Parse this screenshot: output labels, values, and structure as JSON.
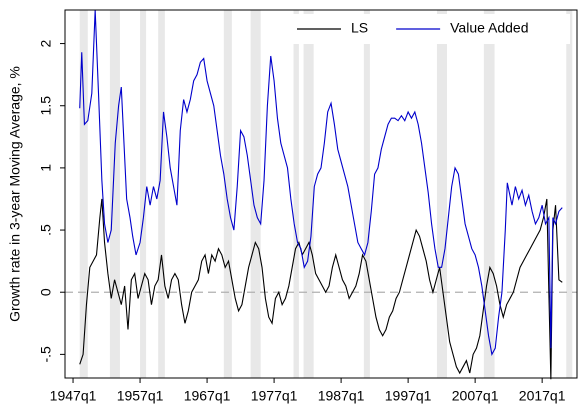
{
  "chart_data": {
    "type": "line",
    "y_label": "Growth rate in 3-year Moving Average, %",
    "xlim": [
      1945.8,
      2022.2
    ],
    "ylim": [
      -0.69,
      2.27
    ],
    "xticks": [
      {
        "value": 1947,
        "label": "1947q1"
      },
      {
        "value": 1957,
        "label": "1957q1"
      },
      {
        "value": 1967,
        "label": "1967q1"
      },
      {
        "value": 1977,
        "label": "1977q1"
      },
      {
        "value": 1987,
        "label": "1987q1"
      },
      {
        "value": 1997,
        "label": "1997q1"
      },
      {
        "value": 2007,
        "label": "2007q1"
      },
      {
        "value": 2017,
        "label": "2017q1"
      }
    ],
    "yticks": [
      {
        "value": -0.5,
        "label": "-.5"
      },
      0,
      {
        "value": 0.5,
        "label": ".5"
      },
      1,
      1.5,
      2
    ],
    "reference_line": 0,
    "legend": "top-right",
    "recessions": [
      [
        1948.0,
        1949.2
      ],
      [
        1952.5,
        1954.0
      ],
      [
        1957.0,
        1957.9
      ],
      [
        1959.7,
        1960.7
      ],
      [
        1969.5,
        1970.7
      ],
      [
        1973.5,
        1975.0
      ],
      [
        1979.9,
        1980.7
      ],
      [
        1981.4,
        1982.9
      ],
      [
        1990.4,
        1991.3
      ],
      [
        2001.3,
        2002.8
      ],
      [
        2008.3,
        2009.9
      ],
      [
        2020.6,
        2021.5
      ]
    ],
    "series": [
      {
        "name": "LS",
        "color": "#000000",
        "x": [
          1948.0,
          1948.5,
          1949.0,
          1949.5,
          1950.0,
          1950.5,
          1951.0,
          1951.3,
          1951.7,
          1952.2,
          1952.7,
          1953.2,
          1953.7,
          1954.2,
          1954.7,
          1955.2,
          1955.7,
          1956.2,
          1956.7,
          1957.2,
          1957.7,
          1958.2,
          1958.7,
          1959.2,
          1959.7,
          1960.2,
          1960.7,
          1961.2,
          1961.7,
          1962.2,
          1962.7,
          1963.2,
          1963.7,
          1964.2,
          1964.7,
          1965.2,
          1965.7,
          1966.2,
          1966.7,
          1967.2,
          1967.7,
          1968.2,
          1968.7,
          1969.2,
          1969.7,
          1970.2,
          1970.7,
          1971.2,
          1971.7,
          1972.2,
          1972.7,
          1973.2,
          1973.7,
          1974.2,
          1974.7,
          1975.2,
          1975.7,
          1976.2,
          1976.7,
          1977.2,
          1977.7,
          1978.2,
          1978.7,
          1979.2,
          1979.7,
          1980.2,
          1980.7,
          1981.2,
          1981.7,
          1982.2,
          1982.7,
          1983.2,
          1983.7,
          1984.2,
          1984.7,
          1985.2,
          1985.7,
          1986.2,
          1986.7,
          1987.2,
          1987.7,
          1988.2,
          1988.7,
          1989.2,
          1989.7,
          1990.2,
          1990.7,
          1991.2,
          1991.7,
          1992.2,
          1992.7,
          1993.2,
          1993.7,
          1994.2,
          1994.7,
          1995.2,
          1995.7,
          1996.2,
          1996.7,
          1997.2,
          1997.7,
          1998.2,
          1998.7,
          1999.2,
          1999.7,
          2000.2,
          2000.7,
          2001.2,
          2001.7,
          2002.2,
          2002.7,
          2003.2,
          2003.7,
          2004.2,
          2004.7,
          2005.2,
          2005.7,
          2006.2,
          2006.7,
          2007.2,
          2007.7,
          2008.2,
          2008.7,
          2009.2,
          2009.7,
          2010.2,
          2010.7,
          2011.2,
          2011.7,
          2012.2,
          2012.7,
          2013.2,
          2013.7,
          2014.2,
          2014.7,
          2015.2,
          2015.7,
          2016.2,
          2016.7,
          2017.2,
          2017.7,
          2018.0,
          2018.3,
          2018.6,
          2019.0,
          2019.5,
          2020.0
        ],
        "values": [
          -0.58,
          -0.5,
          -0.1,
          0.2,
          0.25,
          0.3,
          0.6,
          0.75,
          0.4,
          0.15,
          -0.05,
          0.1,
          0.0,
          -0.1,
          0.05,
          -0.3,
          0.1,
          0.15,
          -0.05,
          0.05,
          0.15,
          0.1,
          -0.1,
          0.05,
          0.1,
          0.3,
          0.05,
          -0.05,
          0.1,
          0.15,
          0.1,
          -0.1,
          -0.25,
          -0.15,
          0.0,
          0.05,
          0.1,
          0.25,
          0.3,
          0.15,
          0.3,
          0.25,
          0.35,
          0.3,
          0.2,
          0.25,
          0.1,
          -0.05,
          -0.15,
          -0.1,
          0.05,
          0.2,
          0.3,
          0.4,
          0.35,
          0.2,
          -0.05,
          -0.2,
          -0.25,
          -0.05,
          0.0,
          -0.1,
          -0.05,
          0.05,
          0.2,
          0.35,
          0.4,
          0.3,
          0.35,
          0.4,
          0.3,
          0.15,
          0.1,
          0.05,
          0.0,
          0.05,
          0.2,
          0.3,
          0.2,
          0.1,
          0.05,
          -0.05,
          0.0,
          0.05,
          0.15,
          0.3,
          0.25,
          0.1,
          -0.05,
          -0.2,
          -0.3,
          -0.35,
          -0.3,
          -0.2,
          -0.15,
          -0.05,
          0.0,
          0.1,
          0.2,
          0.3,
          0.4,
          0.5,
          0.45,
          0.35,
          0.25,
          0.1,
          0.0,
          0.1,
          0.2,
          0.0,
          -0.2,
          -0.4,
          -0.5,
          -0.6,
          -0.65,
          -0.6,
          -0.55,
          -0.65,
          -0.5,
          -0.45,
          -0.35,
          -0.15,
          0.05,
          0.2,
          0.15,
          0.05,
          -0.1,
          -0.2,
          -0.1,
          -0.05,
          0.0,
          0.1,
          0.2,
          0.25,
          0.3,
          0.35,
          0.4,
          0.45,
          0.5,
          0.6,
          0.75,
          0.0,
          -0.7,
          0.5,
          0.7,
          0.1,
          0.08
        ]
      },
      {
        "name": "Value Added",
        "color": "#0000cc",
        "x": [
          1948.0,
          1948.3,
          1948.7,
          1949.2,
          1949.8,
          1950.3,
          1950.8,
          1951.3,
          1951.7,
          1952.2,
          1952.7,
          1953.3,
          1953.8,
          1954.2,
          1954.6,
          1955.0,
          1955.5,
          1955.9,
          1956.4,
          1957.0,
          1957.5,
          1958.0,
          1958.5,
          1959.0,
          1959.5,
          1960.0,
          1960.5,
          1961.0,
          1961.5,
          1962.0,
          1962.5,
          1963.0,
          1963.5,
          1964.0,
          1964.5,
          1965.0,
          1965.5,
          1966.0,
          1966.5,
          1967.0,
          1967.5,
          1968.0,
          1968.5,
          1969.0,
          1969.5,
          1970.0,
          1970.5,
          1971.0,
          1971.5,
          1972.0,
          1972.5,
          1973.0,
          1973.5,
          1974.0,
          1974.5,
          1975.0,
          1975.5,
          1976.0,
          1976.5,
          1977.0,
          1977.5,
          1978.0,
          1978.5,
          1979.0,
          1979.5,
          1980.0,
          1980.5,
          1981.0,
          1981.5,
          1982.0,
          1982.5,
          1983.0,
          1983.5,
          1984.0,
          1984.5,
          1985.0,
          1985.5,
          1986.0,
          1986.5,
          1987.0,
          1987.5,
          1988.0,
          1988.5,
          1989.0,
          1989.5,
          1990.0,
          1990.5,
          1991.0,
          1991.5,
          1992.0,
          1992.5,
          1993.0,
          1993.5,
          1994.0,
          1994.5,
          1995.0,
          1995.5,
          1996.0,
          1996.5,
          1997.0,
          1997.5,
          1998.0,
          1998.5,
          1999.0,
          1999.5,
          2000.0,
          2000.5,
          2001.0,
          2001.5,
          2002.0,
          2002.5,
          2003.0,
          2003.5,
          2004.0,
          2004.5,
          2005.0,
          2005.5,
          2006.0,
          2006.5,
          2007.0,
          2007.5,
          2008.0,
          2008.5,
          2009.0,
          2009.5,
          2010.0,
          2010.5,
          2011.0,
          2011.5,
          2011.8,
          2012.5,
          2013.0,
          2013.5,
          2014.0,
          2014.5,
          2015.0,
          2015.5,
          2016.0,
          2016.5,
          2017.0,
          2017.5,
          2018.0,
          2018.3,
          2018.6,
          2019.0,
          2019.5,
          2020.0
        ],
        "values": [
          1.48,
          1.93,
          1.35,
          1.38,
          1.6,
          2.27,
          1.6,
          0.9,
          0.55,
          0.4,
          0.5,
          1.2,
          1.5,
          1.65,
          1.2,
          0.75,
          0.6,
          0.45,
          0.3,
          0.4,
          0.6,
          0.85,
          0.7,
          0.85,
          0.75,
          0.9,
          1.45,
          1.25,
          1.0,
          0.85,
          0.7,
          1.3,
          1.55,
          1.45,
          1.55,
          1.7,
          1.75,
          1.85,
          1.88,
          1.7,
          1.6,
          1.5,
          1.3,
          1.1,
          0.95,
          0.75,
          0.6,
          0.5,
          0.85,
          1.3,
          1.25,
          1.1,
          0.9,
          0.7,
          0.6,
          0.55,
          0.9,
          1.5,
          1.9,
          1.7,
          1.4,
          1.2,
          1.1,
          1.0,
          0.75,
          0.55,
          0.4,
          0.35,
          0.2,
          0.25,
          0.45,
          0.85,
          0.95,
          1.0,
          1.2,
          1.45,
          1.52,
          1.35,
          1.15,
          1.05,
          0.95,
          0.85,
          0.7,
          0.55,
          0.4,
          0.35,
          0.3,
          0.4,
          0.65,
          0.95,
          1.0,
          1.15,
          1.25,
          1.35,
          1.4,
          1.4,
          1.38,
          1.42,
          1.38,
          1.45,
          1.4,
          1.45,
          1.35,
          1.2,
          1.0,
          0.8,
          0.55,
          0.35,
          0.2,
          0.2,
          0.35,
          0.6,
          0.85,
          1.0,
          0.95,
          0.75,
          0.55,
          0.45,
          0.35,
          0.3,
          0.2,
          0.05,
          -0.15,
          -0.35,
          -0.5,
          -0.45,
          -0.2,
          0.0,
          0.5,
          0.88,
          0.7,
          0.85,
          0.75,
          0.82,
          0.7,
          0.78,
          0.65,
          0.55,
          0.6,
          0.7,
          0.55,
          0.6,
          -0.45,
          0.6,
          0.55,
          0.65,
          0.68
        ]
      }
    ]
  }
}
